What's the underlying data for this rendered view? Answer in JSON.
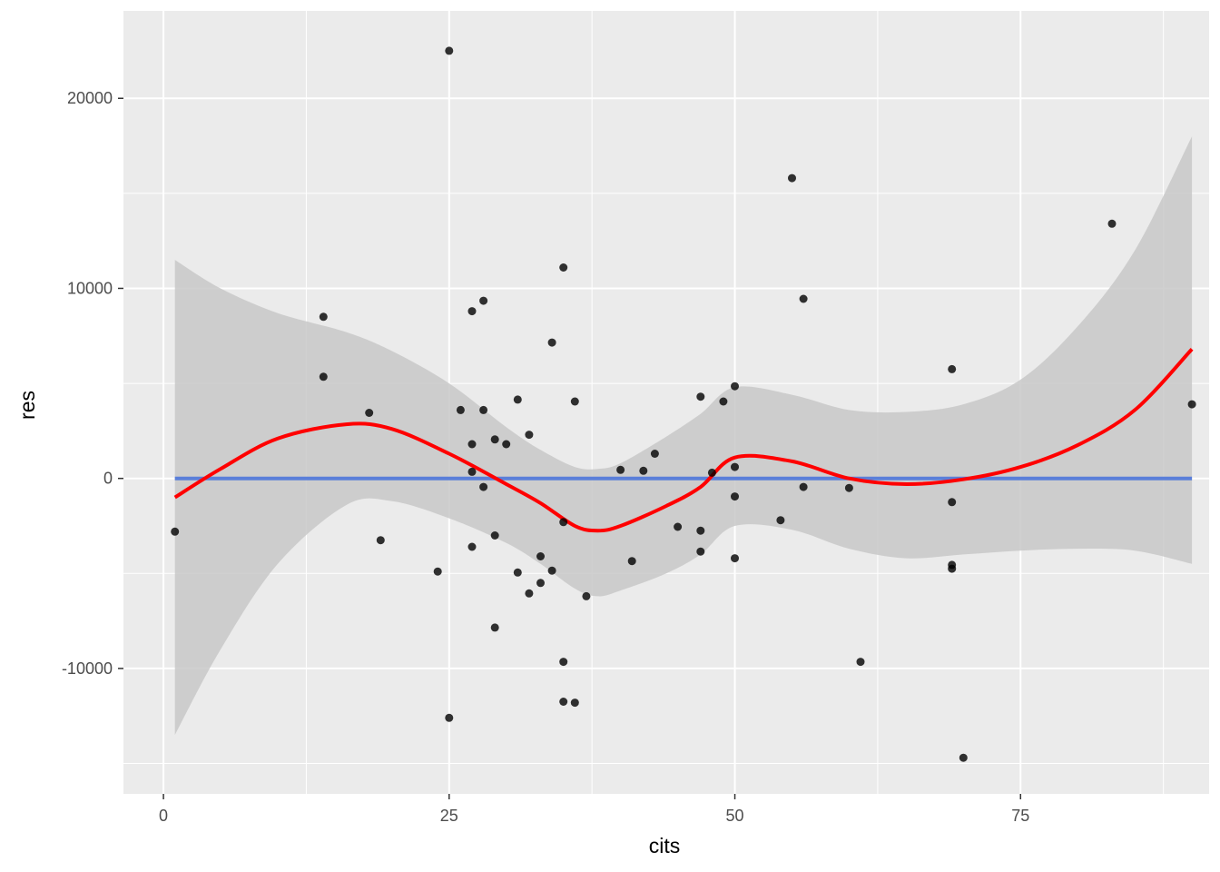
{
  "chart_data": {
    "type": "scatter",
    "xlabel": "cits",
    "ylabel": "res",
    "xlim": [
      -3.5,
      91.5
    ],
    "ylim": [
      -16600,
      24600
    ],
    "x_ticks": [
      0,
      25,
      50,
      75
    ],
    "x_tick_labels": [
      "0",
      "25",
      "50",
      "75"
    ],
    "y_ticks": [
      -10000,
      0,
      10000,
      20000
    ],
    "y_tick_labels": [
      "-10000",
      "0",
      "10000",
      "20000"
    ],
    "x_minor": [
      12.5,
      37.5,
      62.5,
      87.5
    ],
    "y_minor": [
      -15000,
      -5000,
      5000,
      15000
    ],
    "grid": true,
    "colors": {
      "panel_background": "#ebebeb",
      "grid_major": "#ffffff",
      "points": "#000000",
      "smooth_line": "#ff0000",
      "reference_line": "#5a7fd9",
      "confidence_band": "#c8c8c8"
    },
    "points": [
      [
        1,
        -2800
      ],
      [
        14,
        8500
      ],
      [
        14,
        5350
      ],
      [
        18,
        3450
      ],
      [
        19,
        -3250
      ],
      [
        24,
        -4900
      ],
      [
        25,
        22500
      ],
      [
        25,
        -12600
      ],
      [
        26,
        3600
      ],
      [
        27,
        8800
      ],
      [
        27,
        1800
      ],
      [
        27,
        350
      ],
      [
        27,
        -3600
      ],
      [
        28,
        9350
      ],
      [
        28,
        3600
      ],
      [
        28,
        -450
      ],
      [
        29,
        2050
      ],
      [
        29,
        -3000
      ],
      [
        29,
        -7850
      ],
      [
        30,
        1800
      ],
      [
        31,
        4150
      ],
      [
        31,
        -4950
      ],
      [
        32,
        2300
      ],
      [
        32,
        -6050
      ],
      [
        33,
        -4100
      ],
      [
        33,
        -5500
      ],
      [
        34,
        7150
      ],
      [
        34,
        -4850
      ],
      [
        35,
        11100
      ],
      [
        35,
        -2300
      ],
      [
        35,
        -9650
      ],
      [
        35,
        -11750
      ],
      [
        36,
        4050
      ],
      [
        36,
        -11800
      ],
      [
        37,
        -6200
      ],
      [
        40,
        450
      ],
      [
        41,
        -4350
      ],
      [
        42,
        400
      ],
      [
        43,
        1300
      ],
      [
        45,
        -2550
      ],
      [
        47,
        4300
      ],
      [
        47,
        -2750
      ],
      [
        47,
        -3850
      ],
      [
        48,
        300
      ],
      [
        49,
        4050
      ],
      [
        50,
        4850
      ],
      [
        50,
        600
      ],
      [
        50,
        -950
      ],
      [
        50,
        -4200
      ],
      [
        54,
        -2200
      ],
      [
        55,
        15800
      ],
      [
        56,
        9450
      ],
      [
        56,
        -450
      ],
      [
        60,
        -500
      ],
      [
        61,
        -9650
      ],
      [
        69,
        5750
      ],
      [
        69,
        -1250
      ],
      [
        69,
        -4550
      ],
      [
        69,
        -4750
      ],
      [
        70,
        -14700
      ],
      [
        83,
        13400
      ],
      [
        90,
        3900
      ]
    ],
    "series": [
      {
        "name": "",
        "type": "smooth",
        "x": [
          1,
          5,
          10,
          16,
          20,
          25,
          30,
          33,
          36,
          38,
          40,
          44,
          47,
          50,
          55,
          60,
          65,
          70,
          75,
          80,
          85,
          90
        ],
        "y": [
          -1000,
          500,
          2100,
          2850,
          2600,
          1300,
          -300,
          -1300,
          -2500,
          -2750,
          -2500,
          -1450,
          -450,
          1100,
          900,
          0,
          -300,
          -50,
          600,
          1750,
          3600,
          6800
        ]
      },
      {
        "name": "",
        "type": "reference",
        "x": [
          1,
          90
        ],
        "y": [
          0,
          0
        ]
      }
    ],
    "band": {
      "x": [
        1,
        5,
        10,
        16,
        20,
        25,
        30,
        33,
        36,
        38,
        40,
        44,
        47,
        50,
        55,
        60,
        65,
        70,
        75,
        80,
        85,
        90
      ],
      "upper": [
        11500,
        10000,
        8700,
        7700,
        6700,
        5000,
        2700,
        1500,
        600,
        500,
        800,
        2200,
        3400,
        4800,
        4400,
        3600,
        3500,
        3900,
        5200,
        8000,
        12000,
        18000
      ],
      "lower": [
        -13500,
        -9000,
        -4500,
        -1400,
        -1200,
        -2100,
        -3400,
        -4500,
        -5800,
        -6200,
        -5900,
        -5000,
        -4000,
        -2500,
        -2700,
        -3700,
        -4200,
        -4000,
        -3800,
        -3700,
        -3800,
        -4500
      ]
    }
  }
}
